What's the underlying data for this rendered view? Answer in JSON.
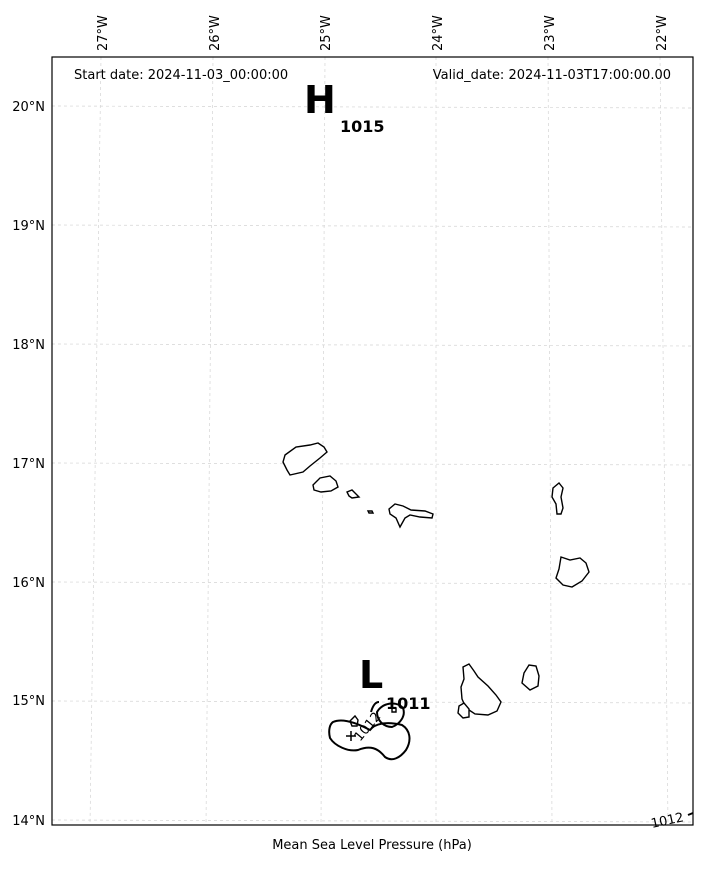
{
  "header": {
    "start_date": "Start date: 2024-11-03_00:00:00",
    "valid_date": "Valid_date: 2024-11-03T17:00:00.00"
  },
  "footer": {
    "caption": "Mean Sea Level Pressure (hPa)"
  },
  "axes": {
    "lon_labels": [
      "27°W",
      "26°W",
      "25°W",
      "24°W",
      "23°W",
      "22°W"
    ],
    "lat_labels": [
      "20°N",
      "19°N",
      "18°N",
      "17°N",
      "16°N",
      "15°N",
      "14°N"
    ]
  },
  "pressure_centers": [
    {
      "type": "high",
      "letter": "H",
      "value": "1015"
    },
    {
      "type": "low",
      "letter": "L",
      "value": "1011"
    }
  ],
  "isobar_labels": [
    "1012",
    "1012"
  ],
  "colors": {
    "coastline": "#000000",
    "gridline": "#d4d4d4",
    "isobar": "#000000"
  }
}
